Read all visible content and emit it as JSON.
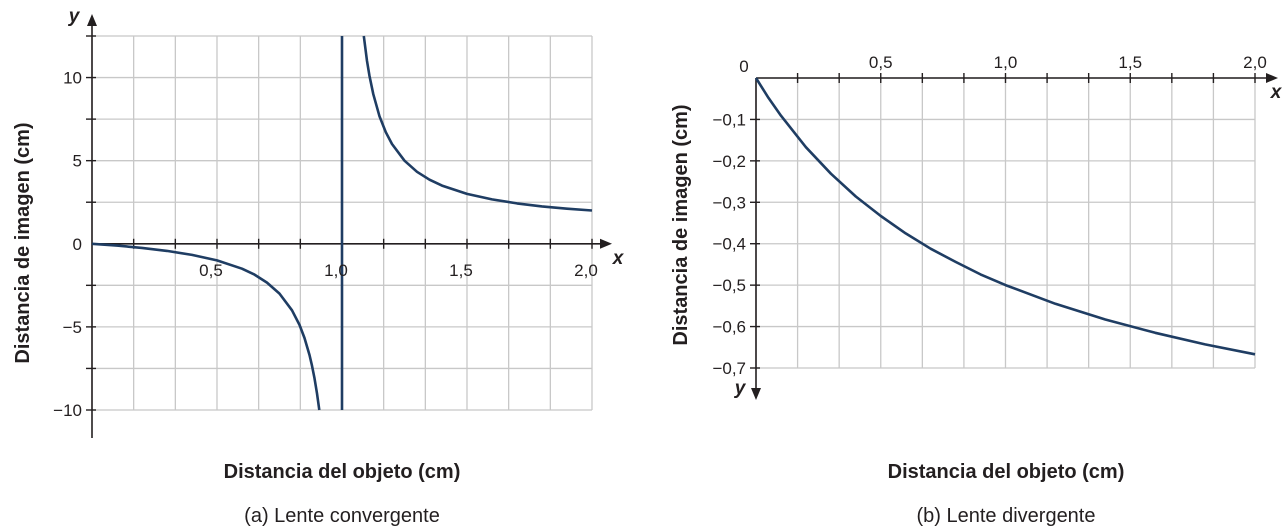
{
  "colors": {
    "curve": "#1f3d63",
    "grid": "#c8c8c8",
    "axis": "#231f20"
  },
  "chart_data": [
    {
      "type": "line",
      "caption": "(a) Lente convergente",
      "xlabel": "Distancia del objeto (cm)",
      "ylabel": "Distancia de imagen  (cm)",
      "x_axis_var": "x",
      "y_axis_var": "y",
      "xlim": [
        0,
        2.0
      ],
      "ylim": [
        -10,
        12.5
      ],
      "x_grid_step": 0.1667,
      "y_grid_step": 2.5,
      "grid": true,
      "x_ticks": [
        {
          "v": 0.5,
          "label": "0,5"
        },
        {
          "v": 1.0,
          "label": "1,0"
        },
        {
          "v": 1.5,
          "label": "1,5"
        },
        {
          "v": 2.0,
          "label": "2,0"
        }
      ],
      "y_ticks": [
        {
          "v": 10,
          "label": "10"
        },
        {
          "v": 5,
          "label": "5"
        },
        {
          "v": 0,
          "label": "0"
        },
        {
          "v": -5,
          "label": "−5"
        },
        {
          "v": -10,
          "label": "−10"
        }
      ],
      "vertical_asymptote": 1.0,
      "series": [
        {
          "points": [
            [
              0,
              0
            ],
            [
              0.1,
              -0.111
            ],
            [
              0.2,
              -0.25
            ],
            [
              0.3,
              -0.429
            ],
            [
              0.4,
              -0.667
            ],
            [
              0.5,
              -1
            ],
            [
              0.6,
              -1.5
            ],
            [
              0.65,
              -1.857
            ],
            [
              0.7,
              -2.333
            ],
            [
              0.75,
              -3
            ],
            [
              0.8,
              -4
            ],
            [
              0.83,
              -4.882
            ],
            [
              0.85,
              -5.667
            ],
            [
              0.87,
              -6.692
            ],
            [
              0.88,
              -7.333
            ],
            [
              0.89,
              -8.091
            ],
            [
              0.9,
              -9
            ],
            [
              0.909,
              -10
            ]
          ]
        },
        {
          "points": [
            [
              1.087,
              12.5
            ],
            [
              1.1,
              11
            ],
            [
              1.11,
              10.091
            ],
            [
              1.125,
              9
            ],
            [
              1.15,
              7.667
            ],
            [
              1.175,
              6.714
            ],
            [
              1.2,
              6
            ],
            [
              1.25,
              5
            ],
            [
              1.3,
              4.333
            ],
            [
              1.35,
              3.857
            ],
            [
              1.4,
              3.5
            ],
            [
              1.5,
              3
            ],
            [
              1.6,
              2.667
            ],
            [
              1.7,
              2.429
            ],
            [
              1.8,
              2.25
            ],
            [
              1.9,
              2.111
            ],
            [
              2.0,
              2
            ]
          ]
        }
      ]
    },
    {
      "type": "line",
      "caption": "(b) Lente divergente",
      "xlabel": "Distancia del objeto (cm)",
      "ylabel": "Distancia de imagen (cm)",
      "x_axis_var": "x",
      "y_axis_var": "y",
      "xlim": [
        0,
        2.0
      ],
      "ylim": [
        -0.7,
        0
      ],
      "x_grid_step": 0.1667,
      "y_grid_step": 0.1,
      "grid": true,
      "x_ticks": [
        {
          "v": 0.5,
          "label": "0,5"
        },
        {
          "v": 1.0,
          "label": "1,0"
        },
        {
          "v": 1.5,
          "label": "1,5"
        },
        {
          "v": 2.0,
          "label": "2,0"
        }
      ],
      "origin_label": "0",
      "y_ticks": [
        {
          "v": -0.1,
          "label": "−0,1"
        },
        {
          "v": -0.2,
          "label": "−0,2"
        },
        {
          "v": -0.3,
          "label": "−0,3"
        },
        {
          "v": -0.4,
          "label": "−0,4"
        },
        {
          "v": -0.5,
          "label": "−0,5"
        },
        {
          "v": -0.6,
          "label": "−0,6"
        },
        {
          "v": -0.7,
          "label": "−0,7"
        }
      ],
      "series": [
        {
          "points": [
            [
              0,
              0
            ],
            [
              0.05,
              -0.048
            ],
            [
              0.1,
              -0.091
            ],
            [
              0.2,
              -0.167
            ],
            [
              0.3,
              -0.231
            ],
            [
              0.4,
              -0.286
            ],
            [
              0.5,
              -0.333
            ],
            [
              0.6,
              -0.375
            ],
            [
              0.7,
              -0.412
            ],
            [
              0.8,
              -0.444
            ],
            [
              0.9,
              -0.474
            ],
            [
              1.0,
              -0.5
            ],
            [
              1.2,
              -0.545
            ],
            [
              1.4,
              -0.583
            ],
            [
              1.6,
              -0.615
            ],
            [
              1.8,
              -0.643
            ],
            [
              2.0,
              -0.667
            ]
          ]
        }
      ]
    }
  ]
}
